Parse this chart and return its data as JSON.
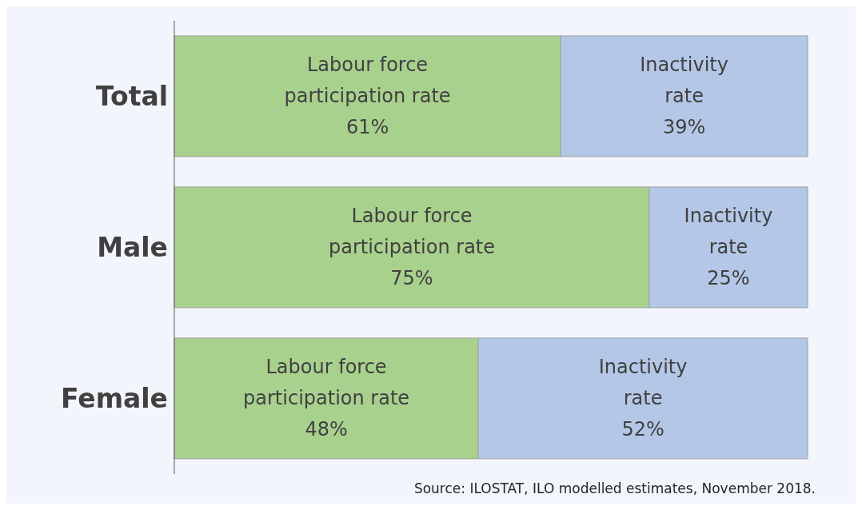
{
  "chart_data": {
    "type": "bar",
    "orientation": "horizontal",
    "stacked": true,
    "categories": [
      "Total",
      "Male",
      "Female"
    ],
    "series": [
      {
        "name": "Labour force participation rate",
        "color": "#a9d18e",
        "values": [
          61,
          75,
          48
        ],
        "value_labels": [
          "61%",
          "75%",
          "48%"
        ]
      },
      {
        "name": "Inactivity rate",
        "color": "#b4c7e7",
        "values": [
          39,
          25,
          52
        ],
        "value_labels": [
          "39%",
          "25%",
          "52%"
        ]
      }
    ],
    "tick_labels": "y",
    "annotations": [
      "Source: ILOSTAT, ILO modelled estimates, November 2018."
    ]
  }
}
